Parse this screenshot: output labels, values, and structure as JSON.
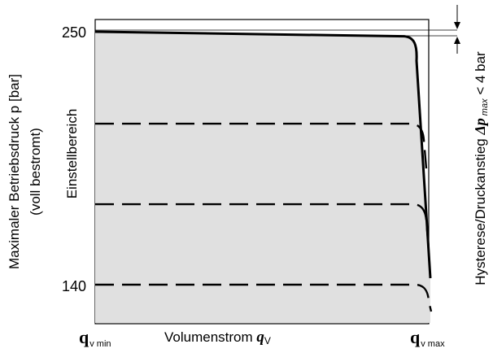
{
  "chart_data": {
    "type": "line",
    "title": "",
    "ylabel_line1": "Maximaler Betriebsdruck p [bar]",
    "ylabel_line2": "(voll bestromt)",
    "region_label": "Einstellbereich",
    "xlabel_text": "Volumenstrom ",
    "xlabel_symbol": "q",
    "xlabel_sub": "V",
    "x_tick_min": {
      "main": "q",
      "sub": "v min"
    },
    "x_tick_max": {
      "main": "q",
      "sub": "v max"
    },
    "y_ticks": [
      "250",
      "140"
    ],
    "right_label_prefix": "Hysterese/Druckanstieg ",
    "right_label_symbol": "Δp",
    "right_label_sub": " max",
    "right_label_suffix": " < 4 bar",
    "ylim": [
      125,
      262
    ],
    "y_tick_values": [
      250,
      140
    ],
    "series": [
      {
        "style": "solid",
        "start_pressure": 250,
        "end_pressure": 248
      },
      {
        "style": "dashed",
        "start_pressure": 210,
        "end_pressure": 210
      },
      {
        "style": "dashed",
        "start_pressure": 175,
        "end_pressure": 175
      },
      {
        "style": "dashed",
        "start_pressure": 140,
        "end_pressure": 140
      }
    ],
    "colors": {
      "fill": "#e0e0e0",
      "line": "#000000",
      "frame": "#000000"
    }
  }
}
